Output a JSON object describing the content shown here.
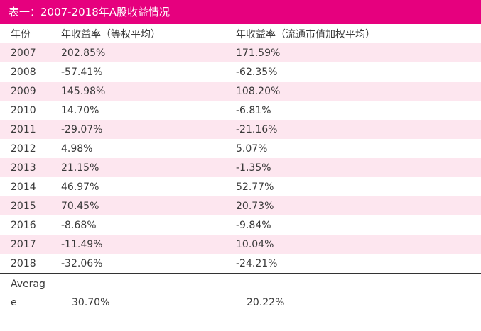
{
  "table": {
    "title": "表一：2007-2018年A股收益情况",
    "headers": [
      "年份",
      "年收益率（等权平均）",
      "年收益率（流通市值加权平均）"
    ],
    "rows": [
      [
        "2007",
        "202.85%",
        "171.59%"
      ],
      [
        "2008",
        "-57.41%",
        "-62.35%"
      ],
      [
        "2009",
        "145.98%",
        "108.20%"
      ],
      [
        "2010",
        "14.70%",
        "-6.81%"
      ],
      [
        "2011",
        "-29.07%",
        "-21.16%"
      ],
      [
        "2012",
        "4.98%",
        "5.07%"
      ],
      [
        "2013",
        "21.15%",
        "-1.35%"
      ],
      [
        "2014",
        "46.97%",
        "52.77%"
      ],
      [
        "2015",
        "70.45%",
        "20.73%"
      ],
      [
        "2016",
        "-8.68%",
        "-9.84%"
      ],
      [
        "2017",
        "-11.49%",
        "10.04%"
      ],
      [
        "2018",
        "-32.06%",
        "-24.21%"
      ]
    ],
    "average": {
      "label_line1": "Averag",
      "label_line2": "e",
      "equal_weight": "30.70%",
      "cap_weight": "20.22%"
    }
  },
  "colors": {
    "title_bg": "#e6007e",
    "stripe": "#fde6ef"
  }
}
